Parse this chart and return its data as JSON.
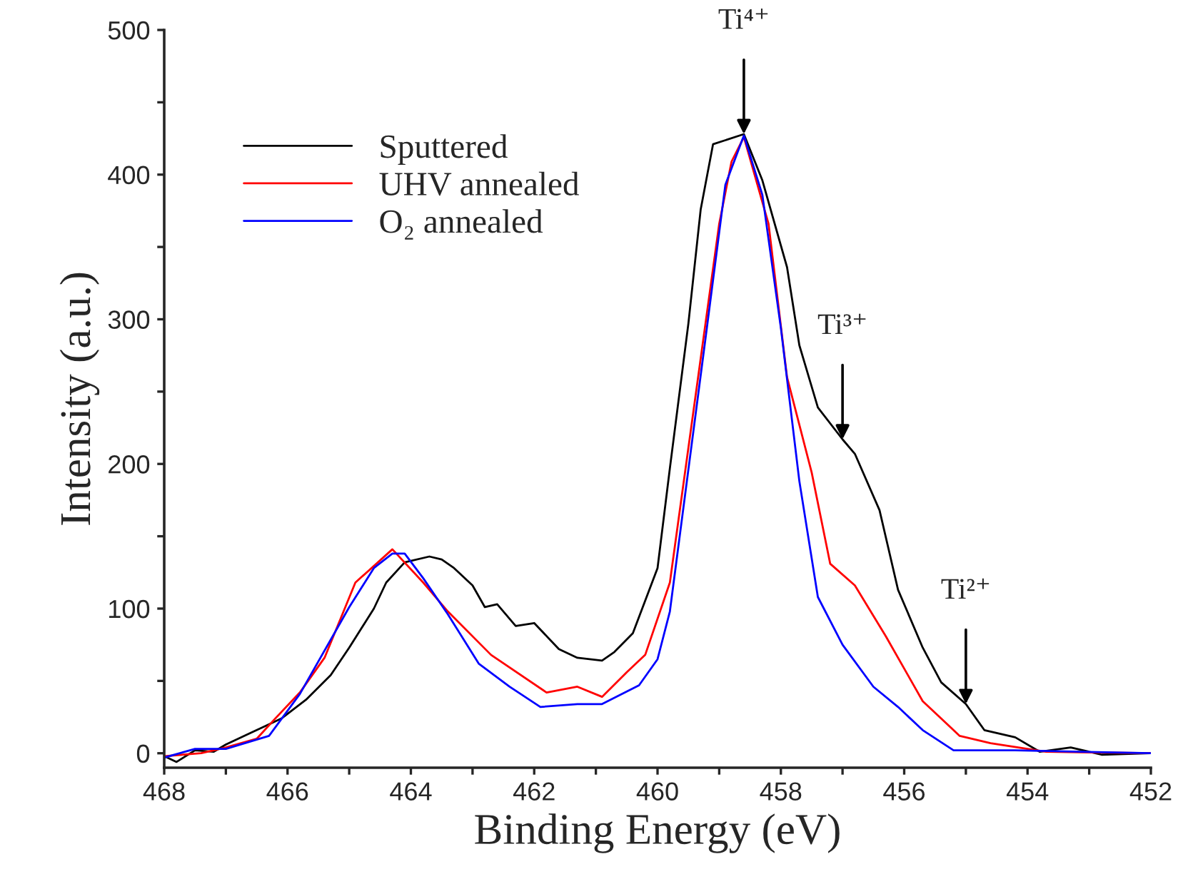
{
  "chart_data": {
    "type": "line",
    "xlabel": "Binding Energy (eV)",
    "ylabel": "Intensity (a.u.)",
    "xlim": [
      468,
      452
    ],
    "ylim": [
      -10,
      500
    ],
    "xticks": [
      468,
      {
        "value": 467,
        "label": null
      },
      466,
      {
        "value": 465,
        "label": null
      },
      464,
      {
        "value": 463,
        "label": null
      },
      462,
      {
        "value": 461,
        "label": null
      },
      460,
      {
        "value": 459,
        "label": null
      },
      458,
      {
        "value": 457,
        "label": null
      },
      456,
      {
        "value": 455,
        "label": null
      },
      454,
      {
        "value": 453,
        "label": null
      },
      452
    ],
    "yticks": [
      0,
      {
        "value": 50,
        "label": null
      },
      100,
      {
        "value": 150,
        "label": null
      },
      200,
      {
        "value": 250,
        "label": null
      },
      300,
      {
        "value": 350,
        "label": null
      },
      400,
      {
        "value": 450,
        "label": null
      },
      500
    ],
    "legend": "top left",
    "grid": false,
    "line_style": "solid",
    "marker": "none",
    "series": [
      {
        "name": "Sputtered",
        "color": "#000000",
        "x": [
          468,
          467.8,
          467.5,
          467.2,
          467.0,
          466.6,
          466.1,
          465.7,
          465.3,
          465.0,
          464.6,
          464.4,
          464.1,
          463.7,
          463.5,
          463.3,
          463.0,
          462.8,
          462.6,
          462.3,
          462.0,
          461.6,
          461.3,
          460.9,
          460.7,
          460.4,
          460.0,
          459.8,
          459.5,
          459.3,
          459.1,
          458.6,
          458.3,
          457.9,
          457.7,
          457.4,
          457.0,
          456.8,
          456.4,
          456.1,
          455.7,
          455.4,
          455.0,
          454.7,
          454.2,
          453.8,
          453.3,
          452.8,
          452
        ],
        "values": [
          -2,
          -6,
          2,
          1,
          6,
          14,
          24,
          37,
          54,
          73,
          100,
          118,
          132,
          136,
          134,
          128,
          116,
          101,
          103,
          88,
          90,
          72,
          66,
          64,
          70,
          83,
          128,
          197,
          297,
          376,
          421,
          428,
          396,
          336,
          282,
          239,
          217,
          207,
          168,
          113,
          73,
          49,
          34,
          16,
          11,
          1,
          4,
          -1,
          0
        ]
      },
      {
        "name": "UHV annealed",
        "color": "#ff0000",
        "x": [
          468,
          467.4,
          467.0,
          466.5,
          466.2,
          465.8,
          465.4,
          464.9,
          464.3,
          463.8,
          463.4,
          462.7,
          461.8,
          461.3,
          460.9,
          460.5,
          460.2,
          459.8,
          459.0,
          458.8,
          458.6,
          458.2,
          457.9,
          457.5,
          457.2,
          456.8,
          456.3,
          455.7,
          455.1,
          454.6,
          453.7,
          452
        ],
        "values": [
          -2,
          0,
          4,
          10,
          24,
          42,
          66,
          118,
          141,
          118,
          98,
          68,
          42,
          46,
          39,
          56,
          68,
          118,
          366,
          409,
          426,
          366,
          260,
          194,
          131,
          116,
          81,
          36,
          12,
          7,
          1,
          0
        ]
      },
      {
        "name": "O₂ annealed",
        "color": "#0000ff",
        "x": [
          468,
          467.5,
          467.0,
          466.3,
          465.8,
          465.0,
          464.6,
          464.3,
          464.1,
          463.8,
          463.4,
          462.9,
          462.4,
          461.9,
          461.3,
          460.9,
          460.3,
          460.0,
          459.8,
          459.2,
          458.9,
          458.6,
          458.3,
          458.0,
          457.7,
          457.4,
          457.0,
          456.5,
          456.1,
          455.7,
          455.2,
          454.2,
          452
        ],
        "values": [
          -3,
          3,
          3,
          12,
          41,
          101,
          128,
          138,
          138,
          121,
          96,
          62,
          46,
          32,
          34,
          34,
          47,
          65,
          98,
          294,
          393,
          427,
          386,
          294,
          188,
          108,
          75,
          46,
          32,
          16,
          2,
          2,
          0
        ]
      }
    ],
    "annotations": [
      {
        "text": "Ti⁴⁺",
        "x": 458.6,
        "y": 428
      },
      {
        "text": "Ti³⁺",
        "x": 457.0,
        "y": 217
      },
      {
        "text": "Ti²⁺",
        "x": 455.0,
        "y": 34
      }
    ]
  }
}
